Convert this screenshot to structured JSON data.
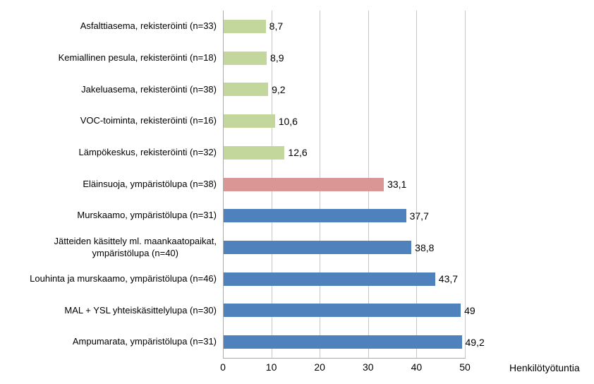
{
  "chart_data": {
    "type": "bar",
    "orientation": "horizontal",
    "title": "",
    "xlabel": "Henkilötyötuntia",
    "ylabel": "",
    "xlim": [
      0,
      50
    ],
    "x_ticks": [
      "0",
      "10",
      "20",
      "30",
      "40",
      "50"
    ],
    "grid": true,
    "legend": false,
    "decimal_separator": ",",
    "colors": {
      "green": "#c3d69b",
      "red": "#d99694",
      "blue": "#4f81bd"
    },
    "items": [
      {
        "label": "Asfalttiasema, rekisteröinti (n=33)",
        "value": 8.7,
        "value_label": "8,7",
        "color": "green"
      },
      {
        "label": "Kemiallinen pesula, rekisteröinti (n=18)",
        "value": 8.9,
        "value_label": "8,9",
        "color": "green"
      },
      {
        "label": "Jakeluasema, rekisteröinti (n=38)",
        "value": 9.2,
        "value_label": "9,2",
        "color": "green"
      },
      {
        "label": "VOC-toiminta, rekisteröinti (n=16)",
        "value": 10.6,
        "value_label": "10,6",
        "color": "green"
      },
      {
        "label": "Lämpökeskus, rekisteröinti (n=32)",
        "value": 12.6,
        "value_label": "12,6",
        "color": "green"
      },
      {
        "label": "Eläinsuoja, ympäristölupa (n=38)",
        "value": 33.1,
        "value_label": "33,1",
        "color": "red"
      },
      {
        "label": "Murskaamo, ympäristölupa (n=31)",
        "value": 37.7,
        "value_label": "37,7",
        "color": "blue"
      },
      {
        "label": "Jätteiden käsittely ml. maankaatopaikat,\nympäristölupa (n=40)",
        "value": 38.8,
        "value_label": "38,8",
        "color": "blue"
      },
      {
        "label": "Louhinta ja murskaamo, ympäristölupa (n=46)",
        "value": 43.7,
        "value_label": "43,7",
        "color": "blue"
      },
      {
        "label": "MAL + YSL yhteiskäsittelylupa (n=30)",
        "value": 49,
        "value_label": "49",
        "color": "blue"
      },
      {
        "label": "Ampumarata, ympäristölupa (n=31)",
        "value": 49.2,
        "value_label": "49,2",
        "color": "blue"
      }
    ]
  }
}
